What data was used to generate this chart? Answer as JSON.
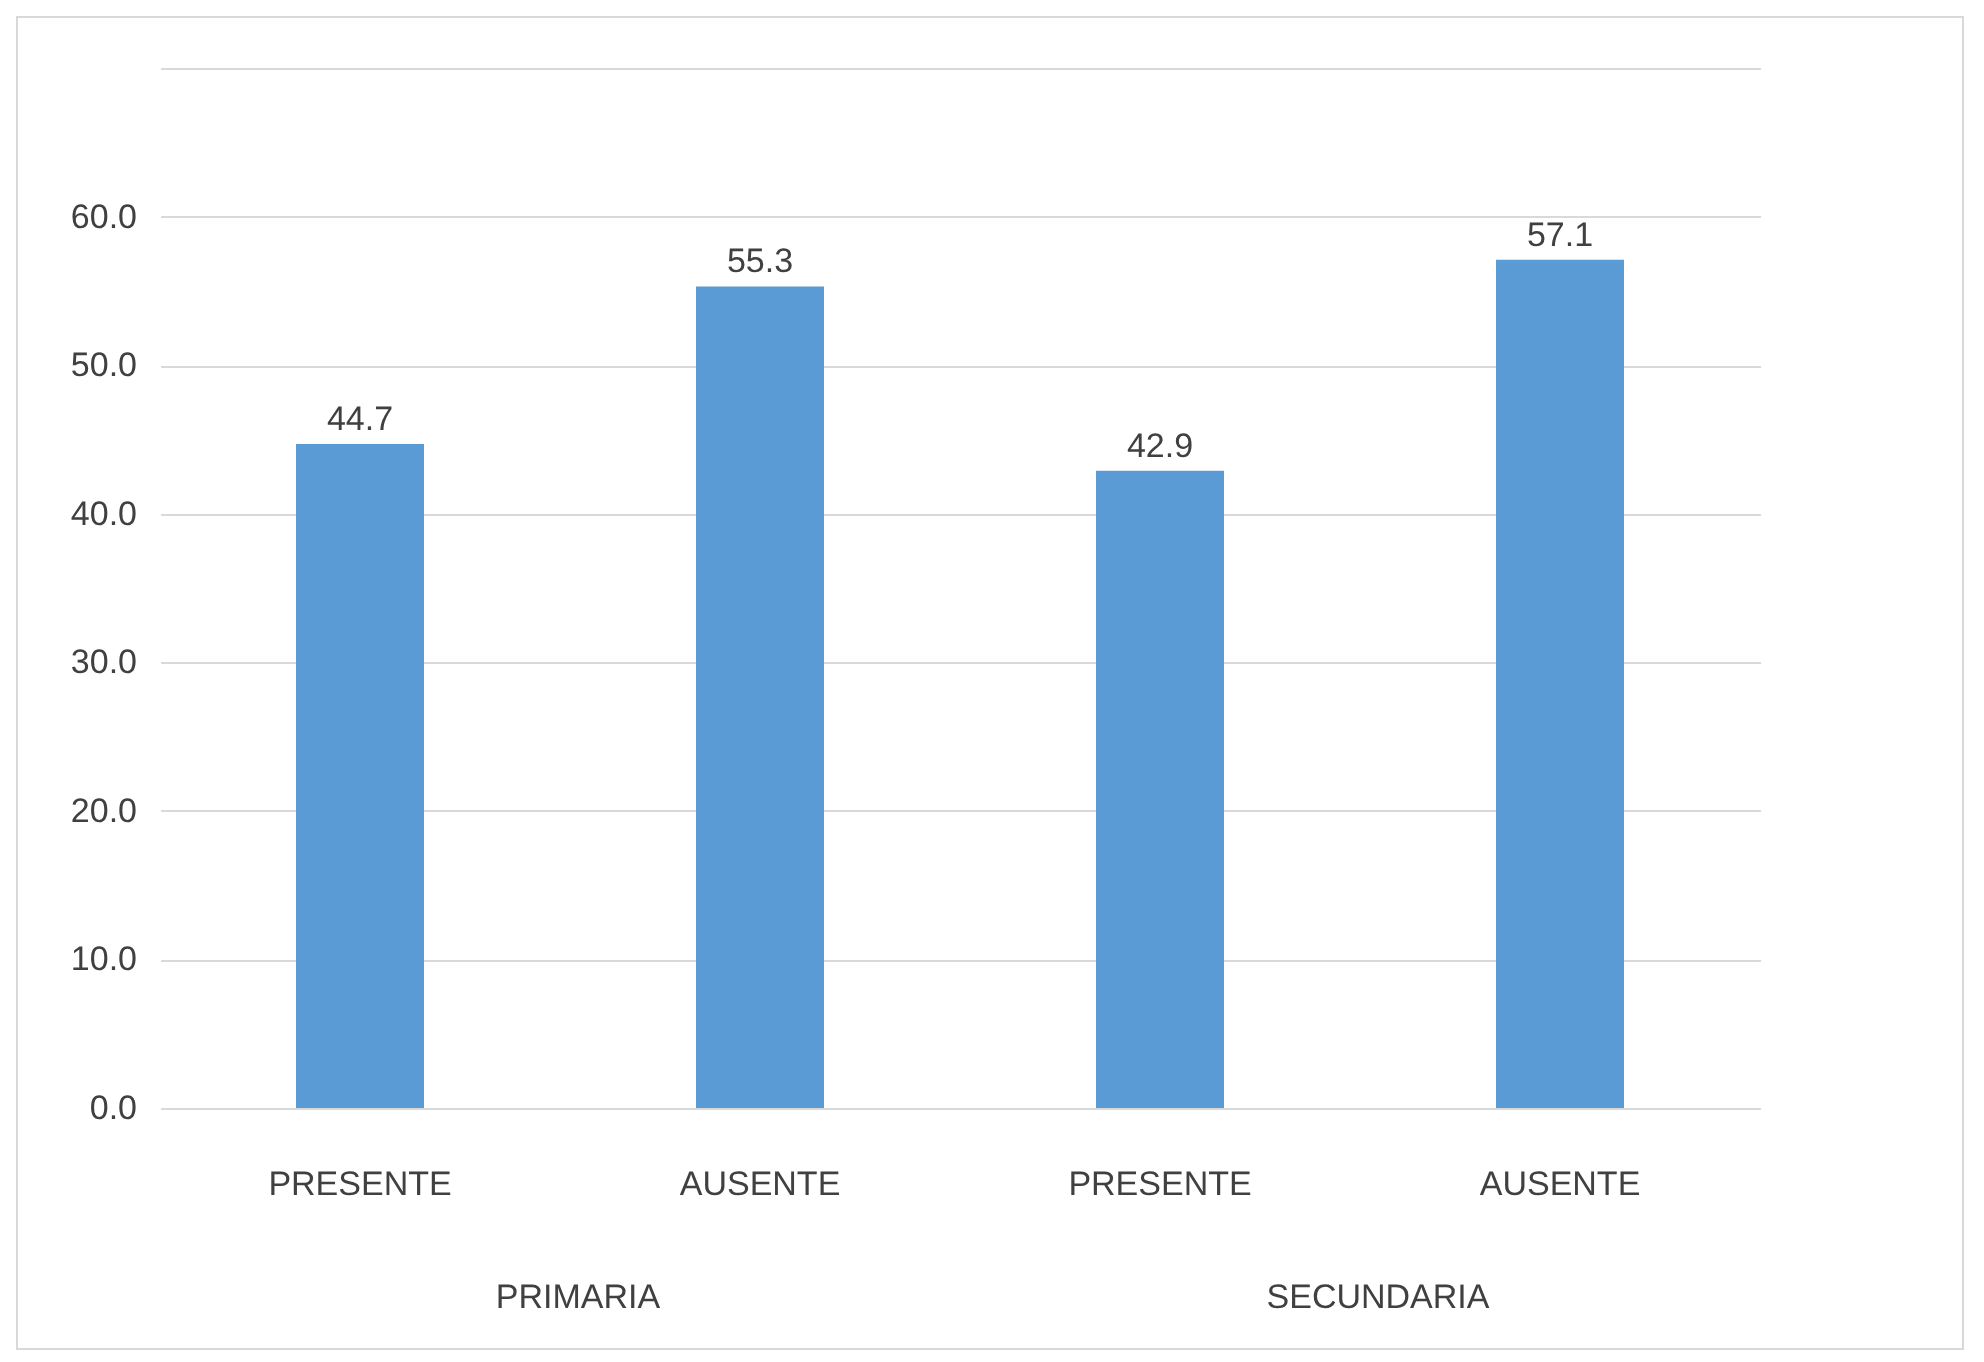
{
  "chart_data": {
    "type": "bar",
    "categories": [
      "PRESENTE",
      "AUSENTE",
      "PRESENTE",
      "AUSENTE"
    ],
    "values": [
      44.7,
      55.3,
      42.9,
      57.1
    ],
    "color": "#5b9bd5",
    "data_labels": true,
    "ylim": [
      0,
      70
    ],
    "yticks": [
      {
        "value": 0,
        "label": "0.0"
      },
      {
        "value": 10,
        "label": "10.0"
      },
      {
        "value": 20,
        "label": "20.0"
      },
      {
        "value": 30,
        "label": "30.0"
      },
      {
        "value": 40,
        "label": "40.0"
      },
      {
        "value": 50,
        "label": "50.0"
      },
      {
        "value": 60,
        "label": "60.0"
      },
      {
        "value": 70,
        "label": null
      }
    ],
    "grid": "y",
    "annotations": [
      "PRIMARIA",
      "SECUNDARIA"
    ]
  }
}
